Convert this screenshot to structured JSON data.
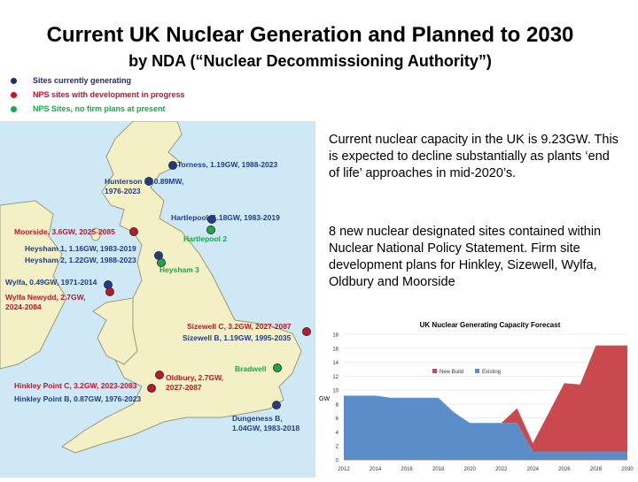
{
  "title": "Current UK Nuclear Generation and Planned to 2030",
  "subtitle": "by NDA (“Nuclear Decommissioning Authority”)",
  "legend": [
    {
      "label": "Sites currently generating",
      "color": "#1f2f6b"
    },
    {
      "label": "NPS sites with development in progress",
      "color": "#c0152a"
    },
    {
      "label": "NPS Sites, no firm plans at present",
      "color": "#1aa84a"
    }
  ],
  "map": {
    "sites": [
      {
        "label": "Torness, 1.19GW, 1988-2023",
        "color": "#1f3c8c",
        "status": "generating"
      },
      {
        "label": "Hunterson B, 0.89MW,\n1976-2023",
        "color": "#1f3c8c",
        "status": "generating"
      },
      {
        "label": "Hartlepool, 1.18GW, 1983-2019",
        "color": "#1f3c8c",
        "status": "generating"
      },
      {
        "label": "Hartlepool 2",
        "color": "#1aa84a",
        "status": "no-plans"
      },
      {
        "label": "Moorside, 3.6GW, 2025-2085",
        "color": "#c0152a",
        "status": "in-progress"
      },
      {
        "label": "Heysham 1, 1.16GW, 1983-2019",
        "color": "#1f3c8c",
        "status": "generating"
      },
      {
        "label": "Heysham 2, 1.22GW, 1988-2023",
        "color": "#1f3c8c",
        "status": "generating"
      },
      {
        "label": "Heysham 3",
        "color": "#1aa84a",
        "status": "no-plans"
      },
      {
        "label": "Wylfa, 0.49GW, 1971-2014",
        "color": "#1f3c8c",
        "status": "generating"
      },
      {
        "label": "Wylfa Newydd, 2.7GW,\n2024-2084",
        "color": "#c0152a",
        "status": "in-progress"
      },
      {
        "label": "Sizewell C, 3.2GW, 2027-2087",
        "color": "#c0152a",
        "status": "in-progress"
      },
      {
        "label": "Sizewell B, 1.19GW, 1995-2035",
        "color": "#1f3c8c",
        "status": "generating"
      },
      {
        "label": "Bradwell",
        "color": "#1aa84a",
        "status": "no-plans"
      },
      {
        "label": "Oldbury, 2.7GW,\n2027-2087",
        "color": "#c0152a",
        "status": "in-progress"
      },
      {
        "label": "Hinkley Point C, 3.2GW, 2023-2083",
        "color": "#c0152a",
        "status": "in-progress"
      },
      {
        "label": "Hinkley Point B, 0.87GW, 1976-2023",
        "color": "#1f3c8c",
        "status": "generating"
      },
      {
        "label": "Dungeness B,\n1.04GW, 1983-2018",
        "color": "#1f3c8c",
        "status": "generating"
      }
    ]
  },
  "paragraphs": [
    "Current nuclear capacity in the UK is 9.23GW.  This is expected to decline substantially  as plants ‘end of life’ approaches in mid-2020’s.",
    "8 new nuclear designated sites contained within Nuclear National Policy Statement. Firm site development plans for Hinkley, Sizewell, Wylfa, Oldbury and Moorside"
  ],
  "chart_data": {
    "type": "area",
    "title": "UK Nuclear Generating Capacity Forecast",
    "ylabel": "GW",
    "xlabel": "",
    "ylim": [
      0,
      18
    ],
    "yticks": [
      0,
      2,
      4,
      6,
      8,
      10,
      12,
      14,
      16,
      18
    ],
    "xticks": [
      2012,
      2014,
      2016,
      2018,
      2020,
      2022,
      2024,
      2026,
      2028,
      2030
    ],
    "legend_position": "top-right",
    "series": [
      {
        "name": "Existing",
        "color": "#5b8ec9",
        "x": [
          2012,
          2014,
          2015,
          2018,
          2019,
          2020,
          2021,
          2022,
          2023,
          2024,
          2030
        ],
        "y": [
          9.2,
          9.2,
          8.9,
          8.9,
          6.8,
          5.3,
          5.3,
          5.3,
          5.3,
          1.2,
          1.2
        ]
      },
      {
        "name": "New Build",
        "color": "#c9494e",
        "x": [
          2012,
          2022,
          2023,
          2024,
          2025,
          2026,
          2027,
          2028,
          2030
        ],
        "y": [
          0,
          0,
          2.1,
          1.2,
          5.5,
          9.8,
          9.6,
          15.2,
          15.2
        ]
      }
    ]
  }
}
